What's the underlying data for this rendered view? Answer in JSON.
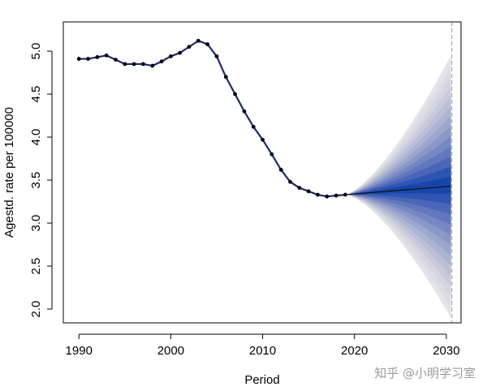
{
  "chart_data": {
    "type": "line",
    "xlabel": "Period",
    "ylabel": "Agestd. rate per 100000",
    "xlim": [
      1988.3,
      2031.6
    ],
    "ylim": [
      1.84,
      5.34
    ],
    "xticks": [
      1990,
      2000,
      2010,
      2020,
      2030
    ],
    "xtick_labels": [
      "1990",
      "2000",
      "2010",
      "2020",
      "2030"
    ],
    "yticks": [
      2.0,
      2.5,
      3.0,
      3.5,
      4.0,
      4.5,
      5.0
    ],
    "ytick_labels": [
      "2.0",
      "2.5",
      "3.0",
      "3.5",
      "4.0",
      "4.5",
      "5.0"
    ],
    "vline_x": 2030.6,
    "observed": {
      "x": [
        1990,
        1991,
        1992,
        1993,
        1994,
        1995,
        1996,
        1997,
        1998,
        1999,
        2000,
        2001,
        2002,
        2003,
        2004,
        2005,
        2006,
        2007,
        2008,
        2009,
        2010,
        2011,
        2012,
        2013,
        2014,
        2015,
        2016,
        2017,
        2018,
        2019
      ],
      "y": [
        4.91,
        4.91,
        4.93,
        4.95,
        4.9,
        4.85,
        4.85,
        4.85,
        4.83,
        4.88,
        4.94,
        4.98,
        5.05,
        5.12,
        5.08,
        4.94,
        4.7,
        4.5,
        4.3,
        4.12,
        3.97,
        3.8,
        3.62,
        3.48,
        3.41,
        3.37,
        3.33,
        3.31,
        3.32,
        3.33
      ]
    },
    "fitted": {
      "x": [
        1990,
        1991,
        1992,
        1993,
        1994,
        1995,
        1996,
        1997,
        1998,
        1999,
        2000,
        2001,
        2002,
        2003,
        2004,
        2005,
        2006,
        2007,
        2008,
        2009,
        2010,
        2011,
        2012,
        2013,
        2014,
        2015,
        2016,
        2017,
        2018,
        2019
      ],
      "y": [
        4.91,
        4.91,
        4.93,
        4.95,
        4.9,
        4.85,
        4.85,
        4.85,
        4.83,
        4.88,
        4.94,
        4.98,
        5.05,
        5.12,
        5.08,
        4.94,
        4.7,
        4.5,
        4.3,
        4.12,
        3.97,
        3.8,
        3.62,
        3.48,
        3.41,
        3.37,
        3.33,
        3.31,
        3.32,
        3.33
      ]
    },
    "forecast": {
      "x": [
        2019,
        2030.5
      ],
      "y": [
        3.33,
        3.43
      ]
    },
    "prediction_interval": {
      "x_start": 2019,
      "x_end": 2030.5,
      "center_start": 3.33,
      "center_end": 3.43,
      "outer_upper_end": 4.95,
      "outer_lower_end": 1.9,
      "inner_upper_end": 3.54,
      "inner_lower_end": 3.34
    },
    "band_colors": [
      "#e4e4e8",
      "#dcdde4",
      "#d3d5e0",
      "#c8cadb",
      "#bbbfd7",
      "#adb3d2",
      "#9da6cd",
      "#8b97c8",
      "#7787c3",
      "#6277bd",
      "#4b66b8",
      "#2f54b2",
      "#1646ab"
    ],
    "grid": false
  },
  "watermark": "知乎 @小明学习室"
}
